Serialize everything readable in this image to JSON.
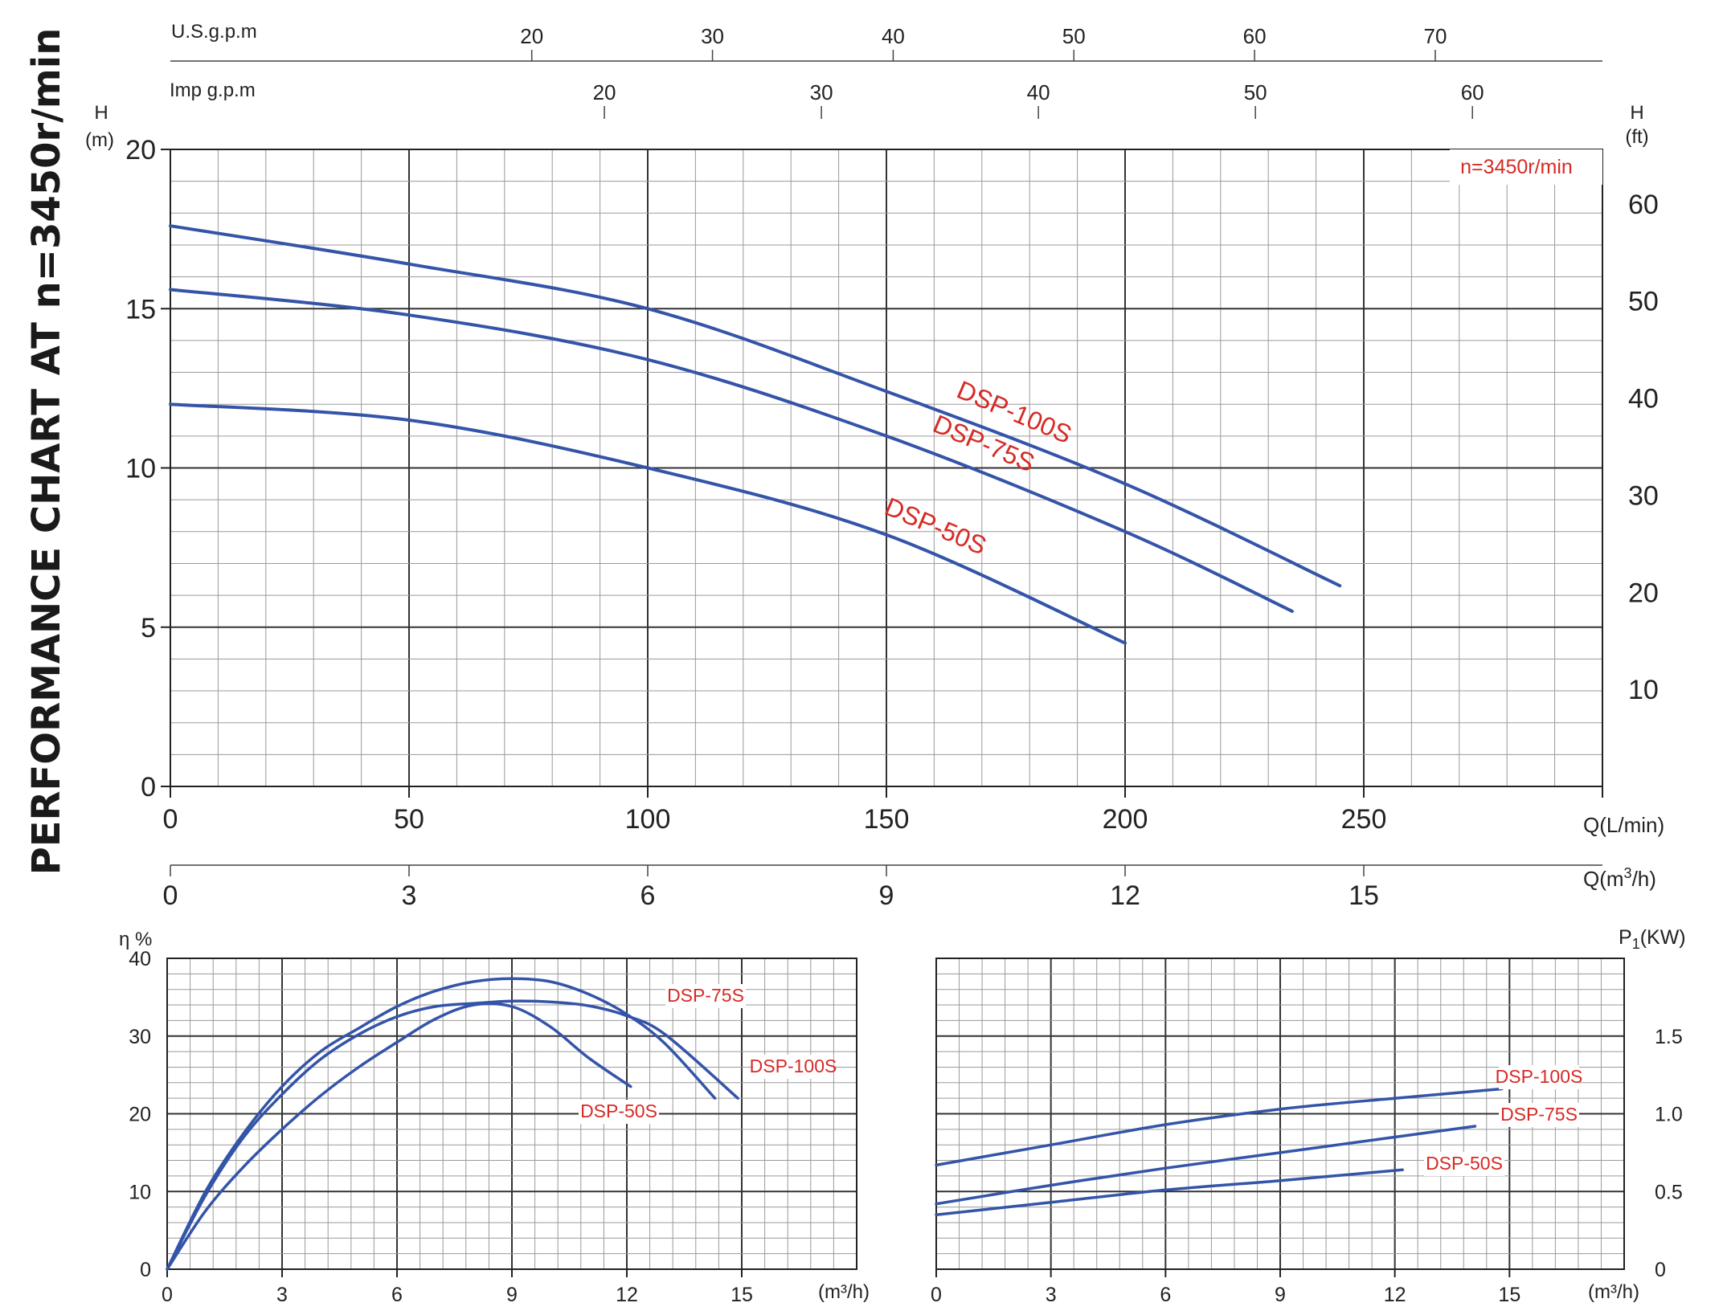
{
  "page_title": "PERFORMANCE CHART AT n=3450r/min",
  "speed_badge": "n=3450r/min",
  "colors": {
    "curve": "#3454a8",
    "label": "#d72a25",
    "grid_major": "#333333",
    "grid_minor": "#9a9a9a",
    "text": "#222222"
  },
  "chart_data": [
    {
      "id": "head",
      "type": "line",
      "xlabel": "Q(L/min)",
      "ylabel_left": [
        "H",
        "(m)"
      ],
      "ylabel_right": [
        "H",
        "(ft)"
      ],
      "xlim": [
        0,
        300
      ],
      "ylim": [
        0,
        20
      ],
      "x_ticks": [
        "0",
        "50",
        "100",
        "150",
        "200",
        "250"
      ],
      "y_ticks": [
        "0",
        "5",
        "10",
        "15",
        "20"
      ],
      "y_ft_ticks": [
        "10",
        "20",
        "30",
        "40",
        "50",
        "60"
      ],
      "grid": true,
      "secondary_axes": {
        "usgpm": {
          "label": "U.S.g.p.m",
          "ticks": [
            "20",
            "30",
            "40",
            "50",
            "60",
            "70"
          ]
        },
        "impgpm": {
          "label": "Imp g.p.m",
          "ticks": [
            "20",
            "30",
            "40",
            "50",
            "60"
          ]
        },
        "m3h": {
          "label_main": "Q(m",
          "label_sup": "3",
          "label_end": "/h)",
          "ticks": [
            "0",
            "3",
            "6",
            "9",
            "12",
            "15"
          ]
        }
      },
      "series": [
        {
          "name": "DSP-100S",
          "x": [
            0,
            50,
            100,
            150,
            200,
            245
          ],
          "y": [
            17.6,
            16.4,
            15.0,
            12.4,
            9.5,
            6.3
          ]
        },
        {
          "name": "DSP-75S",
          "x": [
            0,
            50,
            100,
            150,
            200,
            235
          ],
          "y": [
            15.6,
            14.8,
            13.4,
            11.0,
            8.0,
            5.5
          ]
        },
        {
          "name": "DSP-50S",
          "x": [
            0,
            50,
            100,
            150,
            200
          ],
          "y": [
            12.0,
            11.5,
            10.0,
            7.9,
            4.5
          ]
        }
      ]
    },
    {
      "id": "efficiency",
      "type": "line",
      "ylabel": "η %",
      "xlabel": "(m³/h)",
      "xlim": [
        0,
        18
      ],
      "ylim": [
        0,
        40
      ],
      "x_ticks": [
        "0",
        "3",
        "6",
        "9",
        "12",
        "15"
      ],
      "y_ticks": [
        "0",
        "10",
        "20",
        "30",
        "40"
      ],
      "grid": true,
      "series": [
        {
          "name": "DSP-75S",
          "x": [
            0,
            1,
            2,
            3,
            4,
            5,
            6,
            7,
            8,
            9,
            10,
            11,
            12,
            13,
            14.3
          ],
          "y": [
            0,
            10,
            17.5,
            23.5,
            28,
            31,
            33.8,
            35.8,
            37,
            37.4,
            37,
            35.4,
            32.8,
            29,
            22
          ]
        },
        {
          "name": "DSP-100S",
          "x": [
            0,
            1,
            2,
            3,
            4,
            5,
            6,
            7,
            8,
            9,
            10,
            11,
            12,
            13,
            14.9
          ],
          "y": [
            0,
            9.5,
            17,
            22.5,
            27,
            30.2,
            32.5,
            33.8,
            34.2,
            34.5,
            34.4,
            33.9,
            32.6,
            30.2,
            22
          ]
        },
        {
          "name": "DSP-50S",
          "x": [
            0,
            1,
            2,
            3,
            4,
            5,
            6,
            7,
            8,
            9,
            10,
            11,
            12.1
          ],
          "y": [
            0,
            7.5,
            13.2,
            18,
            22.3,
            26,
            29.2,
            32.2,
            34,
            33.8,
            31.2,
            27.2,
            23.5
          ]
        }
      ]
    },
    {
      "id": "power",
      "type": "line",
      "ylabel": "P1(KW)",
      "ylabel_main": "P",
      "ylabel_sub": "1",
      "ylabel_end": "(KW)",
      "xlabel": "(m³/h)",
      "xlim": [
        0,
        18
      ],
      "ylim": [
        0,
        2.0
      ],
      "x_ticks": [
        "0",
        "3",
        "6",
        "9",
        "12",
        "15"
      ],
      "y_ticks": [
        "0",
        "0.5",
        "1.0",
        "1.5"
      ],
      "grid": true,
      "series": [
        {
          "name": "DSP-100S",
          "x": [
            0,
            3,
            6,
            9,
            12,
            14.8
          ],
          "y": [
            0.67,
            0.8,
            0.93,
            1.03,
            1.1,
            1.16
          ]
        },
        {
          "name": "DSP-75S",
          "x": [
            0,
            3,
            6,
            9,
            12,
            14.1
          ],
          "y": [
            0.42,
            0.54,
            0.65,
            0.75,
            0.85,
            0.92
          ]
        },
        {
          "name": "DSP-50S",
          "x": [
            0,
            3,
            6,
            9,
            12.2
          ],
          "y": [
            0.35,
            0.43,
            0.51,
            0.57,
            0.64
          ]
        }
      ]
    }
  ],
  "icons": []
}
